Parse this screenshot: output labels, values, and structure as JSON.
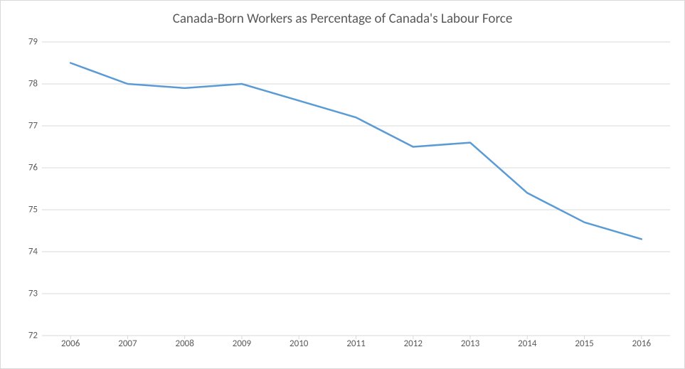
{
  "chart": {
    "type": "line",
    "title": "Canada-Born Workers as Percentage of Canada's Labour Force",
    "title_fontsize": 19,
    "title_color": "#595959",
    "background_color": "#ffffff",
    "border_color": "#d9d9d9",
    "grid_color": "#d9d9d9",
    "axis_label_color": "#595959",
    "axis_label_fontsize": 13,
    "line_color": "#5b9bd5",
    "line_width": 2.5,
    "x_categories": [
      "2006",
      "2007",
      "2008",
      "2009",
      "2010",
      "2011",
      "2012",
      "2013",
      "2014",
      "2015",
      "2016"
    ],
    "y_values": [
      78.5,
      78.0,
      77.9,
      78.0,
      77.6,
      77.2,
      76.5,
      76.6,
      75.4,
      74.7,
      74.3
    ],
    "ylim": [
      72,
      79
    ],
    "ytick_step": 1,
    "y_ticks": [
      72,
      73,
      74,
      75,
      76,
      77,
      78,
      79
    ],
    "tick_mark_color": "#d9d9d9",
    "tick_mark_length": 5
  }
}
